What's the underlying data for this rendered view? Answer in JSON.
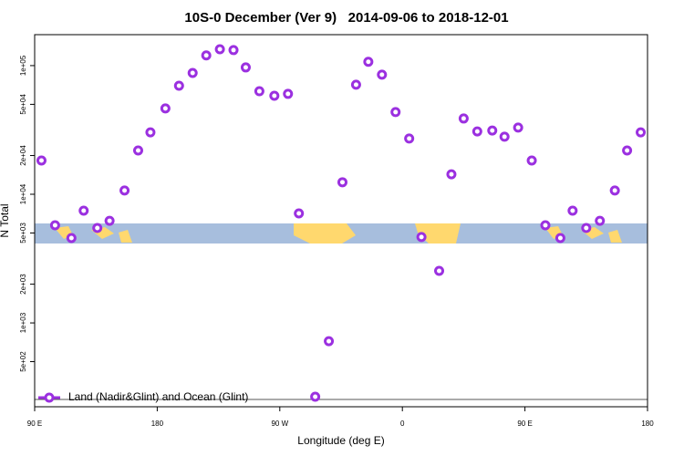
{
  "chart_data": {
    "type": "scatter",
    "title": "10S-0 December (Ver 9)   2014-09-06 to 2018-12-01",
    "x_label": "Longitude (deg E)",
    "y_label": "N Total",
    "log_y": true,
    "legend": "bottom-left",
    "xlim": [
      90,
      540
    ],
    "xticks": [
      {
        "value": 90,
        "label": "90 E"
      },
      180,
      {
        "value": 270,
        "label": "90 W"
      },
      {
        "value": 360,
        "label": "0"
      },
      {
        "value": 450,
        "label": "90 E"
      },
      {
        "value": 540,
        "label": "180"
      }
    ],
    "ylim": [
      223,
      174000
    ],
    "yticks": [
      {
        "value": 500,
        "label": "5e+02"
      },
      {
        "value": 1000,
        "label": "1e+03"
      },
      {
        "value": 2000,
        "label": "2e+03"
      },
      {
        "value": 5000,
        "label": "5e+03"
      },
      {
        "value": 10000,
        "label": "1e+04"
      },
      {
        "value": 20000,
        "label": "2e+04"
      },
      {
        "value": 50000,
        "label": "5e+04"
      },
      {
        "value": 100000,
        "label": "1e+05"
      }
    ],
    "series": [
      {
        "name": "Land (Nadir&Glint) and Ocean (Glint)",
        "color": "#9b30e0",
        "x": [
          95,
          105,
          117,
          126,
          136,
          145,
          156,
          166,
          175,
          186,
          196,
          206,
          216,
          226,
          236,
          245,
          255,
          266,
          276,
          284,
          296,
          306,
          316,
          326,
          335,
          345,
          355,
          365,
          374,
          387,
          396,
          405,
          415,
          426,
          435,
          445,
          455,
          465,
          476,
          485,
          495,
          505,
          516,
          525,
          535
        ],
        "values": [
          18300,
          5740,
          4570,
          7450,
          5470,
          6220,
          10700,
          21900,
          30300,
          46500,
          69800,
          87700,
          120000,
          134000,
          132000,
          96800,
          63200,
          58300,
          60300,
          7100,
          267,
          721,
          12400,
          71000,
          107000,
          85000,
          43500,
          27100,
          4650,
          2540,
          14300,
          38800,
          30800,
          31300,
          28000,
          33000,
          18300,
          5740,
          4570,
          7450,
          5470,
          6220,
          10700,
          21900,
          30300
        ]
      }
    ]
  }
}
